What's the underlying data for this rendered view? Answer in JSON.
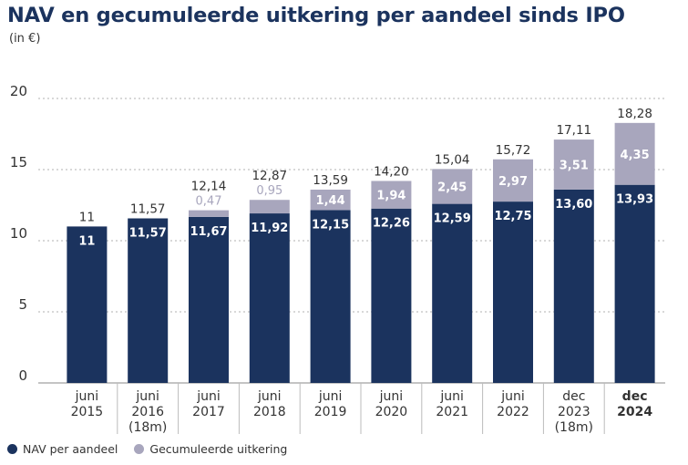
{
  "title": "NAV en gecumuleerde uitkering per aandeel sinds IPO",
  "subtitle": "(in €)",
  "colors": {
    "nav": "#1b335e",
    "dividend": "#a8a6bd",
    "grid": "#b0b0b0",
    "axis": "#888888",
    "text": "#333333"
  },
  "legend": [
    {
      "label": "NAV per aandeel",
      "color": "#1b335e"
    },
    {
      "label": "Gecumuleerde uitkering",
      "color": "#a8a6bd"
    }
  ],
  "chart_data": {
    "type": "bar",
    "stacked": true,
    "ylim": [
      0,
      20
    ],
    "yticks": [
      "0",
      "5",
      "10",
      "15",
      "20"
    ],
    "grid": true,
    "legend_position": "bottom-left",
    "categories": [
      {
        "lines": [
          "juni",
          "2015"
        ],
        "bold": false
      },
      {
        "lines": [
          "juni",
          "2016",
          "(18m)"
        ],
        "bold": false
      },
      {
        "lines": [
          "juni",
          "2017"
        ],
        "bold": false
      },
      {
        "lines": [
          "juni",
          "2018"
        ],
        "bold": false
      },
      {
        "lines": [
          "juni",
          "2019"
        ],
        "bold": false
      },
      {
        "lines": [
          "juni",
          "2020"
        ],
        "bold": false
      },
      {
        "lines": [
          "juni",
          "2021"
        ],
        "bold": false
      },
      {
        "lines": [
          "juni",
          "2022"
        ],
        "bold": false
      },
      {
        "lines": [
          "dec",
          "2023",
          "(18m)"
        ],
        "bold": false
      },
      {
        "lines": [
          "dec",
          "2024"
        ],
        "bold": true
      }
    ],
    "series": [
      {
        "name": "NAV per aandeel",
        "values": [
          11,
          11.57,
          11.67,
          11.92,
          12.15,
          12.26,
          12.59,
          12.75,
          13.6,
          13.93
        ],
        "labels": [
          "11",
          "11,57",
          "11,67",
          "11,92",
          "12,15",
          "12,26",
          "12,59",
          "12,75",
          "13,60",
          "13,93"
        ]
      },
      {
        "name": "Gecumuleerde uitkering",
        "values": [
          0,
          0,
          0.47,
          0.95,
          1.44,
          1.94,
          2.45,
          2.97,
          3.51,
          4.35
        ],
        "labels": [
          "",
          "",
          "0,47",
          "0,95",
          "1,44",
          "1,94",
          "2,45",
          "2,97",
          "3,51",
          "4,35"
        ]
      }
    ],
    "totals": [
      "11",
      "11,57",
      "12,14",
      "12,87",
      "13,59",
      "14,20",
      "15,04",
      "15,72",
      "17,11",
      "18,28"
    ]
  }
}
